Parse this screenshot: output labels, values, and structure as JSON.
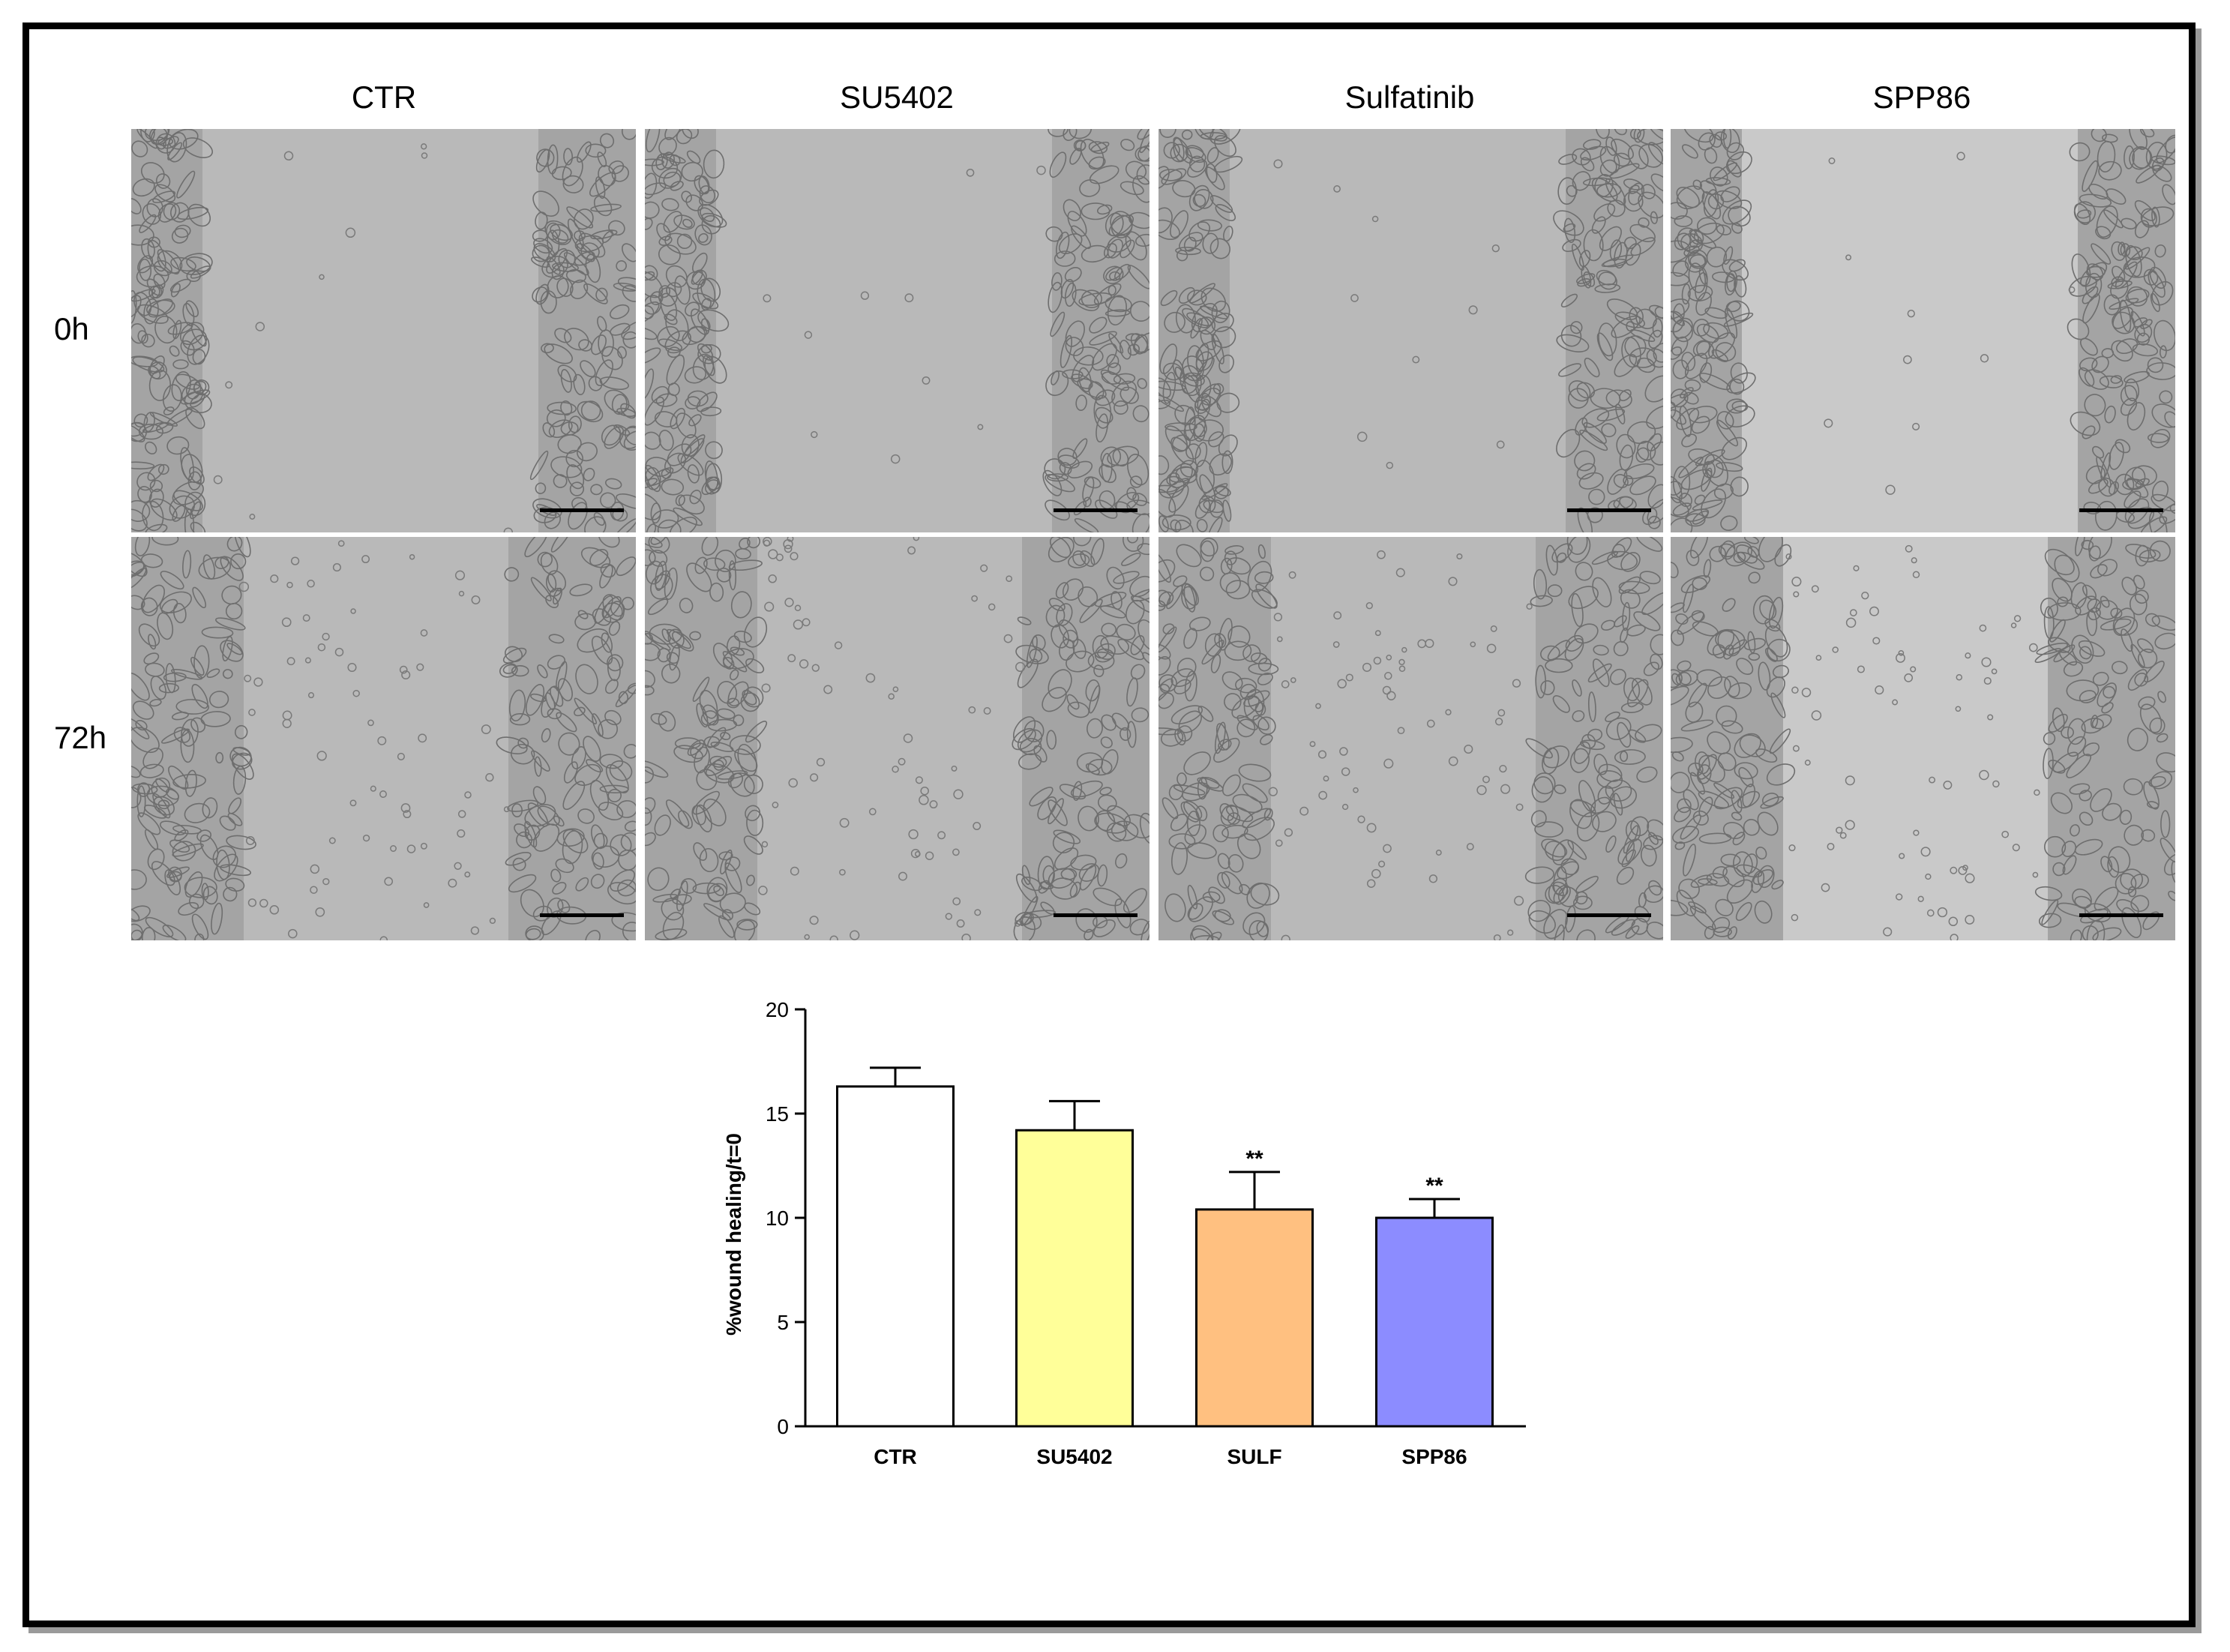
{
  "figure": {
    "columns": [
      "CTR",
      "SU5402",
      "Sulfatinib",
      "SPP86"
    ],
    "rows": [
      "0h",
      "72h"
    ]
  },
  "chart_data": {
    "type": "bar",
    "categories": [
      "CTR",
      "SU5402",
      "SULF",
      "SPP86"
    ],
    "values": [
      16.3,
      14.2,
      10.4,
      10.0
    ],
    "error": [
      0.9,
      1.4,
      1.8,
      0.9
    ],
    "annotations": [
      "",
      "",
      "**",
      "**"
    ],
    "colors": [
      "#ffffff",
      "#ffff99",
      "#ffc080",
      "#8c8cff"
    ],
    "ylabel": "%wound healing/t=0",
    "ylim": [
      0,
      20
    ],
    "yticks": [
      0,
      5,
      10,
      15,
      20
    ],
    "grid": false
  }
}
